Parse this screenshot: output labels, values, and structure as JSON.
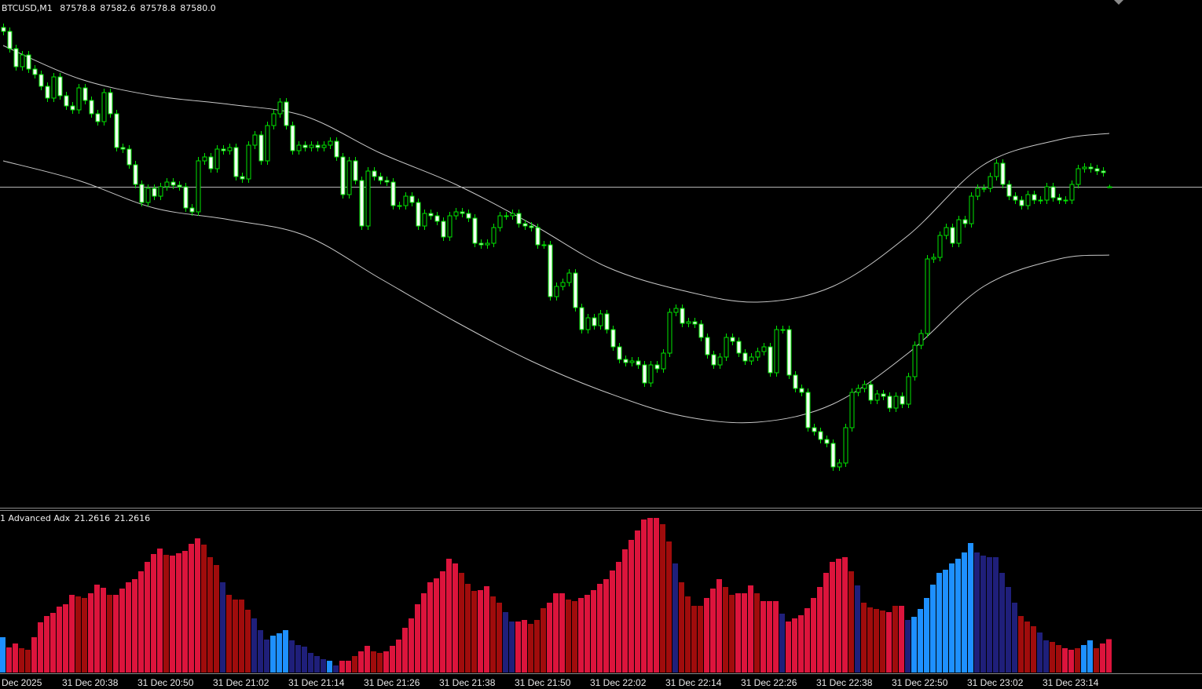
{
  "chart_data": [
    {
      "type": "candlestick",
      "title": "BTCUSD,M1",
      "header_values": [
        "87578.8",
        "87582.6",
        "87578.8",
        "87580.0"
      ],
      "bull_color": "#000000",
      "bear_color": "#f2fff2",
      "wick_color": "#00e600",
      "bid_line_color": "#b4b4b4",
      "ylim": [
        87173,
        87818
      ],
      "open": [
        87783,
        87778,
        87756,
        87733,
        87748,
        87730,
        87723,
        87708,
        87693,
        87720,
        87696,
        87683,
        87678,
        87706,
        87690,
        87673,
        87663,
        87700,
        87673,
        87630,
        87628,
        87608,
        87583,
        87560,
        87578,
        87568,
        87580,
        87586,
        87582,
        87580,
        87553,
        87548,
        87613,
        87618,
        87603,
        87628,
        87626,
        87630,
        87593,
        87590,
        87633,
        87646,
        87613,
        87658,
        87673,
        87688,
        87658,
        87626,
        87633,
        87630,
        87633,
        87630,
        87633,
        87638,
        87618,
        87570,
        87613,
        87588,
        87530,
        87600,
        87593,
        87588,
        87586,
        87556,
        87556,
        87568,
        87560,
        87530,
        87546,
        87543,
        87536,
        87516,
        87543,
        87548,
        87546,
        87540,
        87508,
        87506,
        87508,
        87528,
        87543,
        87543,
        87546,
        87533,
        87530,
        87528,
        87506,
        87506,
        87440,
        87453,
        87458,
        87470,
        87426,
        87398,
        87413,
        87403,
        87418,
        87398,
        87376,
        87360,
        87356,
        87358,
        87353,
        87330,
        87353,
        87348,
        87368,
        87420,
        87425,
        87406,
        87408,
        87405,
        87388,
        87366,
        87353,
        87363,
        87388,
        87383,
        87368,
        87358,
        87363,
        87370,
        87376,
        87343,
        87398,
        87398,
        87340,
        87323,
        87318,
        87273,
        87268,
        87258,
        87253,
        87223,
        87228,
        87273,
        87318,
        87323,
        87328,
        87308,
        87316,
        87313,
        87298,
        87313,
        87303,
        87338,
        87378,
        87393,
        87488,
        87490,
        87518,
        87528,
        87508,
        87538,
        87533,
        87568,
        87578,
        87578,
        87593,
        87610,
        87583,
        87568,
        87563,
        87556,
        87570,
        87563,
        87563,
        87580,
        87566,
        87563,
        87563,
        87583,
        87603,
        87605,
        87603,
        87600,
        87578.8
      ],
      "high": [
        87788,
        87783,
        87761,
        87753,
        87753,
        87735,
        87728,
        87713,
        87725,
        87725,
        87701,
        87688,
        87711,
        87711,
        87695,
        87678,
        87705,
        87705,
        87678,
        87635,
        87633,
        87613,
        87588,
        87583,
        87583,
        87585,
        87591,
        87591,
        87587,
        87585,
        87558,
        87618,
        87623,
        87623,
        87633,
        87633,
        87635,
        87635,
        87598,
        87638,
        87651,
        87651,
        87663,
        87678,
        87693,
        87693,
        87663,
        87638,
        87638,
        87638,
        87638,
        87638,
        87643,
        87643,
        87623,
        87618,
        87618,
        87593,
        87605,
        87605,
        87598,
        87593,
        87591,
        87561,
        87573,
        87573,
        87565,
        87551,
        87551,
        87548,
        87541,
        87548,
        87553,
        87553,
        87551,
        87545,
        87513,
        87513,
        87533,
        87548,
        87548,
        87551,
        87551,
        87538,
        87535,
        87533,
        87511,
        87511,
        87458,
        87463,
        87475,
        87475,
        87431,
        87418,
        87418,
        87423,
        87423,
        87403,
        87381,
        87365,
        87363,
        87363,
        87358,
        87358,
        87358,
        87373,
        87425,
        87430,
        87430,
        87413,
        87413,
        87410,
        87393,
        87371,
        87368,
        87393,
        87393,
        87388,
        87373,
        87368,
        87375,
        87381,
        87381,
        87403,
        87403,
        87403,
        87345,
        87328,
        87323,
        87278,
        87273,
        87263,
        87258,
        87233,
        87278,
        87323,
        87328,
        87333,
        87333,
        87321,
        87321,
        87318,
        87318,
        87318,
        87343,
        87383,
        87398,
        87493,
        87495,
        87523,
        87533,
        87533,
        87543,
        87543,
        87573,
        87583,
        87583,
        87598,
        87615,
        87615,
        87588,
        87573,
        87568,
        87575,
        87575,
        87568,
        87585,
        87585,
        87571,
        87568,
        87588,
        87608,
        87610,
        87610,
        87608,
        87605,
        87582.6
      ],
      "low": [
        87773,
        87751,
        87728,
        87728,
        87725,
        87718,
        87703,
        87688,
        87688,
        87691,
        87678,
        87673,
        87673,
        87685,
        87668,
        87658,
        87658,
        87668,
        87625,
        87623,
        87603,
        87578,
        87555,
        87555,
        87563,
        87563,
        87575,
        87577,
        87575,
        87548,
        87543,
        87543,
        87608,
        87598,
        87598,
        87621,
        87621,
        87588,
        87585,
        87585,
        87628,
        87608,
        87608,
        87653,
        87668,
        87653,
        87621,
        87621,
        87625,
        87625,
        87625,
        87625,
        87628,
        87613,
        87565,
        87565,
        87583,
        87525,
        87525,
        87588,
        87583,
        87581,
        87551,
        87551,
        87551,
        87555,
        87525,
        87525,
        87538,
        87531,
        87511,
        87511,
        87538,
        87541,
        87535,
        87503,
        87501,
        87501,
        87503,
        87523,
        87538,
        87538,
        87528,
        87525,
        87523,
        87501,
        87501,
        87435,
        87435,
        87448,
        87453,
        87421,
        87393,
        87393,
        87398,
        87398,
        87393,
        87371,
        87355,
        87351,
        87351,
        87348,
        87325,
        87325,
        87343,
        87343,
        87363,
        87415,
        87401,
        87401,
        87400,
        87383,
        87361,
        87348,
        87348,
        87358,
        87378,
        87363,
        87353,
        87353,
        87358,
        87365,
        87338,
        87338,
        87393,
        87335,
        87318,
        87313,
        87268,
        87263,
        87253,
        87248,
        87218,
        87218,
        87223,
        87268,
        87313,
        87318,
        87303,
        87303,
        87308,
        87293,
        87293,
        87298,
        87298,
        87333,
        87373,
        87388,
        87483,
        87485,
        87513,
        87503,
        87503,
        87528,
        87528,
        87563,
        87573,
        87573,
        87588,
        87578,
        87563,
        87558,
        87551,
        87551,
        87558,
        87558,
        87558,
        87561,
        87558,
        87558,
        87558,
        87578,
        87598,
        87598,
        87595,
        87593,
        87578.8
      ],
      "close": [
        87778,
        87756,
        87733,
        87748,
        87730,
        87723,
        87708,
        87693,
        87720,
        87696,
        87683,
        87678,
        87706,
        87690,
        87673,
        87663,
        87700,
        87673,
        87630,
        87628,
        87608,
        87583,
        87560,
        87578,
        87568,
        87580,
        87586,
        87582,
        87580,
        87553,
        87548,
        87613,
        87618,
        87603,
        87628,
        87626,
        87630,
        87593,
        87590,
        87633,
        87646,
        87613,
        87658,
        87673,
        87688,
        87658,
        87626,
        87633,
        87630,
        87633,
        87630,
        87633,
        87638,
        87618,
        87570,
        87613,
        87588,
        87530,
        87600,
        87593,
        87588,
        87586,
        87556,
        87556,
        87568,
        87560,
        87530,
        87546,
        87543,
        87536,
        87516,
        87543,
        87548,
        87546,
        87540,
        87508,
        87506,
        87508,
        87528,
        87543,
        87543,
        87546,
        87533,
        87530,
        87528,
        87506,
        87506,
        87440,
        87453,
        87458,
        87470,
        87426,
        87398,
        87413,
        87403,
        87418,
        87398,
        87376,
        87360,
        87356,
        87358,
        87353,
        87330,
        87353,
        87348,
        87368,
        87420,
        87425,
        87406,
        87408,
        87405,
        87388,
        87366,
        87353,
        87363,
        87388,
        87383,
        87368,
        87358,
        87363,
        87370,
        87376,
        87343,
        87398,
        87398,
        87340,
        87323,
        87318,
        87273,
        87268,
        87258,
        87253,
        87223,
        87228,
        87273,
        87318,
        87323,
        87328,
        87308,
        87316,
        87313,
        87298,
        87313,
        87303,
        87338,
        87378,
        87393,
        87488,
        87490,
        87518,
        87528,
        87508,
        87538,
        87533,
        87568,
        87578,
        87578,
        87593,
        87610,
        87583,
        87568,
        87563,
        87556,
        87570,
        87563,
        87563,
        87580,
        87566,
        87563,
        87563,
        87583,
        87603,
        87605,
        87603,
        87600,
        87598,
        87580
      ],
      "bands": [
        {
          "color": "#c8c8c8",
          "x": [
            0,
            12,
            24,
            36,
            48,
            60,
            72,
            84,
            96,
            108,
            120,
            132,
            144,
            156,
            168,
            176
          ],
          "values": [
            87760,
            87718,
            87696,
            87685,
            87670,
            87623,
            87583,
            87533,
            87478,
            87448,
            87433,
            87453,
            87518,
            87608,
            87640,
            87648
          ]
        },
        {
          "color": "#c8c8c8",
          "x": [
            0,
            12,
            24,
            36,
            48,
            60,
            72,
            84,
            96,
            108,
            120,
            132,
            144,
            156,
            168,
            176
          ],
          "values": [
            87613,
            87588,
            87553,
            87538,
            87518,
            87463,
            87408,
            87358,
            87318,
            87288,
            87280,
            87303,
            87368,
            87453,
            87488,
            87493
          ]
        }
      ],
      "x_labels": [
        "Dec 2025",
        "31 Dec 20:38",
        "31 Dec 20:50",
        "31 Dec 21:02",
        "31 Dec 21:14",
        "31 Dec 21:26",
        "31 Dec 21:38",
        "31 Dec 21:50",
        "31 Dec 22:02",
        "31 Dec 22:14",
        "31 Dec 22:26",
        "31 Dec 22:38",
        "31 Dec 22:50",
        "31 Dec 23:02",
        "31 Dec 23:14"
      ]
    },
    {
      "type": "bar",
      "title": "1 Advanced Adx",
      "readout": [
        21.2616,
        21.2616
      ],
      "ylim": [
        0,
        100
      ],
      "values": [
        22.5,
        16,
        18.5,
        15.5,
        14.5,
        22.5,
        32,
        36,
        38,
        42,
        43.5,
        49.5,
        48.5,
        47.5,
        50.5,
        56,
        54,
        49.5,
        49.5,
        53.5,
        57.5,
        59.5,
        64.5,
        70.5,
        75.5,
        79,
        75,
        74.5,
        76,
        77.5,
        82,
        85.5,
        81.5,
        73.5,
        68.5,
        57.5,
        49.5,
        46.5,
        46.5,
        40,
        34.5,
        27,
        21,
        23.5,
        25,
        27,
        20.5,
        17.5,
        16.5,
        12.5,
        10.5,
        8.5,
        7.5,
        4.5,
        7.5,
        7.5,
        10.5,
        13.5,
        17,
        13.5,
        12.5,
        13.5,
        17,
        21,
        28.5,
        34.5,
        43.5,
        50.5,
        57.5,
        60,
        64.5,
        72.5,
        69.5,
        63.5,
        56.5,
        52,
        52.5,
        55,
        48.5,
        44.5,
        38.5,
        32.5,
        32.5,
        33.5,
        31,
        33.5,
        41,
        44.5,
        50.5,
        50.5,
        46.5,
        45.5,
        47.5,
        49.5,
        52.5,
        56.5,
        59.5,
        65,
        70.5,
        78.5,
        84.5,
        90.5,
        97.5,
        98.5,
        98.5,
        94.5,
        83.5,
        69.5,
        57.5,
        48.5,
        42.5,
        42.5,
        47.5,
        53.5,
        59.5,
        54.5,
        49.5,
        50.5,
        50.5,
        55.5,
        50.5,
        45.5,
        45.5,
        45.5,
        37.5,
        32.5,
        34.5,
        36.5,
        41,
        47.5,
        54.5,
        63.5,
        70.5,
        72.5,
        73.5,
        64.5,
        55.5,
        44.5,
        41.5,
        40.5,
        39.5,
        38.5,
        42.5,
        42.5,
        33.5,
        35.5,
        40.5,
        47.5,
        56,
        63.5,
        65.5,
        69.5,
        72.5,
        76.5,
        82.5,
        76.5,
        74.5,
        73.5,
        73.5,
        63.5,
        54.5,
        44.5,
        36,
        32.5,
        29.5,
        25.5,
        20.5,
        19.5,
        17.5,
        15.5,
        14.5,
        15.5,
        17.5,
        20.5,
        15.5,
        18.5,
        21.2616
      ],
      "colors": [
        "#1e90ff",
        "#dc143c",
        "#dc143c",
        "#a00c0c",
        "#a00c0c",
        "#dc143c",
        "#dc143c",
        "#dc143c",
        "#dc143c",
        "#dc143c",
        "#dc143c",
        "#dc143c",
        "#a00c0c",
        "#a00c0c",
        "#dc143c",
        "#dc143c",
        "#dc143c",
        "#a00c0c",
        "#dc143c",
        "#dc143c",
        "#dc143c",
        "#dc143c",
        "#dc143c",
        "#dc143c",
        "#dc143c",
        "#dc143c",
        "#a00c0c",
        "#dc143c",
        "#dc143c",
        "#dc143c",
        "#dc143c",
        "#dc143c",
        "#a00c0c",
        "#a00c0c",
        "#a00c0c",
        "#1f1f7a",
        "#a00c0c",
        "#a00c0c",
        "#a00c0c",
        "#a00c0c",
        "#1f1f7a",
        "#1f1f7a",
        "#1f1f7a",
        "#1e90ff",
        "#1e90ff",
        "#1e90ff",
        "#1f1f7a",
        "#1f1f7a",
        "#1f1f7a",
        "#1f1f7a",
        "#1f1f7a",
        "#1f1f7a",
        "#1e90ff",
        "#1f1f7a",
        "#dc143c",
        "#dc143c",
        "#a00c0c",
        "#dc143c",
        "#dc143c",
        "#a00c0c",
        "#a00c0c",
        "#dc143c",
        "#dc143c",
        "#dc143c",
        "#dc143c",
        "#dc143c",
        "#dc143c",
        "#dc143c",
        "#dc143c",
        "#dc143c",
        "#dc143c",
        "#dc143c",
        "#dc143c",
        "#a00c0c",
        "#a00c0c",
        "#a00c0c",
        "#dc143c",
        "#dc143c",
        "#a00c0c",
        "#a00c0c",
        "#1f1f7a",
        "#1f1f7a",
        "#dc143c",
        "#dc143c",
        "#a00c0c",
        "#a00c0c",
        "#a00c0c",
        "#dc143c",
        "#dc143c",
        "#dc143c",
        "#a00c0c",
        "#a00c0c",
        "#dc143c",
        "#dc143c",
        "#dc143c",
        "#dc143c",
        "#dc143c",
        "#dc143c",
        "#dc143c",
        "#dc143c",
        "#dc143c",
        "#dc143c",
        "#dc143c",
        "#dc143c",
        "#dc143c",
        "#a00c0c",
        "#a00c0c",
        "#1f1f7a",
        "#a00c0c",
        "#a00c0c",
        "#a00c0c",
        "#a00c0c",
        "#dc143c",
        "#dc143c",
        "#dc143c",
        "#a00c0c",
        "#a00c0c",
        "#dc143c",
        "#dc143c",
        "#dc143c",
        "#a00c0c",
        "#dc143c",
        "#dc143c",
        "#dc143c",
        "#1f1f7a",
        "#dc143c",
        "#dc143c",
        "#dc143c",
        "#dc143c",
        "#dc143c",
        "#dc143c",
        "#dc143c",
        "#dc143c",
        "#dc143c",
        "#dc143c",
        "#a00c0c",
        "#1f1f7a",
        "#a00c0c",
        "#a00c0c",
        "#a00c0c",
        "#a00c0c",
        "#dc143c",
        "#a00c0c",
        "#dc143c",
        "#1f1f7a",
        "#1e90ff",
        "#1e90ff",
        "#1e90ff",
        "#1e90ff",
        "#1e90ff",
        "#1e90ff",
        "#1e90ff",
        "#1e90ff",
        "#1e90ff",
        "#1e90ff",
        "#1f1f7a",
        "#1f1f7a",
        "#1f1f7a",
        "#1f1f7a",
        "#1f1f7a",
        "#1f1f7a",
        "#1f1f7a",
        "#a00c0c",
        "#a00c0c",
        "#a00c0c",
        "#1f1f7a",
        "#1f1f7a",
        "#a00c0c",
        "#a00c0c",
        "#dc143c",
        "#dc143c",
        "#a00c0c",
        "#1e90ff",
        "#1e90ff",
        "#a00c0c",
        "#dc143c",
        "#dc143c"
      ]
    }
  ]
}
